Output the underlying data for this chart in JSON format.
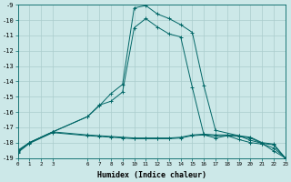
{
  "title": "",
  "xlabel": "Humidex (Indice chaleur)",
  "bg_color": "#cce8e8",
  "grid_color": "#aacccc",
  "line_color": "#006666",
  "xlim": [
    0,
    23
  ],
  "ylim": [
    -19.0,
    -9.0
  ],
  "xticks": [
    0,
    1,
    2,
    3,
    6,
    7,
    8,
    9,
    10,
    11,
    12,
    13,
    14,
    15,
    16,
    17,
    18,
    19,
    20,
    21,
    22,
    23
  ],
  "yticks": [
    -19,
    -18,
    -17,
    -16,
    -15,
    -14,
    -13,
    -12,
    -11,
    -10,
    -9
  ],
  "curve1_x": [
    0,
    1,
    3,
    6,
    7,
    8,
    9,
    10,
    11,
    12,
    13,
    14,
    15,
    16,
    17,
    19,
    20,
    21,
    22,
    23
  ],
  "curve1_y": [
    -18.5,
    -18.0,
    -17.3,
    -16.3,
    -15.6,
    -14.8,
    -14.2,
    -9.2,
    -9.05,
    -9.6,
    -9.9,
    -10.3,
    -10.8,
    -14.3,
    -17.2,
    -17.55,
    -17.85,
    -18.05,
    -18.55,
    -19.0
  ],
  "curve2_x": [
    0,
    1,
    3,
    6,
    7,
    8,
    9,
    10,
    11,
    12,
    13,
    14,
    15,
    16,
    17,
    18,
    19,
    20,
    21,
    22,
    23
  ],
  "curve2_y": [
    -18.55,
    -18.0,
    -17.3,
    -16.3,
    -15.55,
    -15.3,
    -14.7,
    -10.5,
    -9.9,
    -10.45,
    -10.9,
    -11.1,
    -14.4,
    -17.5,
    -17.7,
    -17.55,
    -17.8,
    -18.0,
    -18.1,
    -18.35,
    -19.0
  ],
  "curve3_x": [
    0,
    1,
    3,
    6,
    7,
    8,
    9,
    10,
    11,
    12,
    13,
    14,
    15,
    16,
    17,
    18,
    19,
    20,
    21,
    22,
    23
  ],
  "curve3_y": [
    -18.6,
    -18.0,
    -17.3,
    -17.5,
    -17.55,
    -17.6,
    -17.65,
    -17.7,
    -17.7,
    -17.7,
    -17.7,
    -17.65,
    -17.5,
    -17.45,
    -17.5,
    -17.5,
    -17.55,
    -17.65,
    -18.0,
    -18.1,
    -19.0
  ],
  "curve4_x": [
    0,
    1,
    3,
    6,
    7,
    8,
    9,
    10,
    11,
    12,
    13,
    14,
    15,
    16,
    17,
    18,
    19,
    20,
    21,
    22,
    23
  ],
  "curve4_y": [
    -18.65,
    -18.05,
    -17.35,
    -17.55,
    -17.6,
    -17.65,
    -17.7,
    -17.75,
    -17.75,
    -17.75,
    -17.75,
    -17.7,
    -17.55,
    -17.5,
    -17.55,
    -17.55,
    -17.6,
    -17.7,
    -18.05,
    -18.15,
    -19.05
  ]
}
